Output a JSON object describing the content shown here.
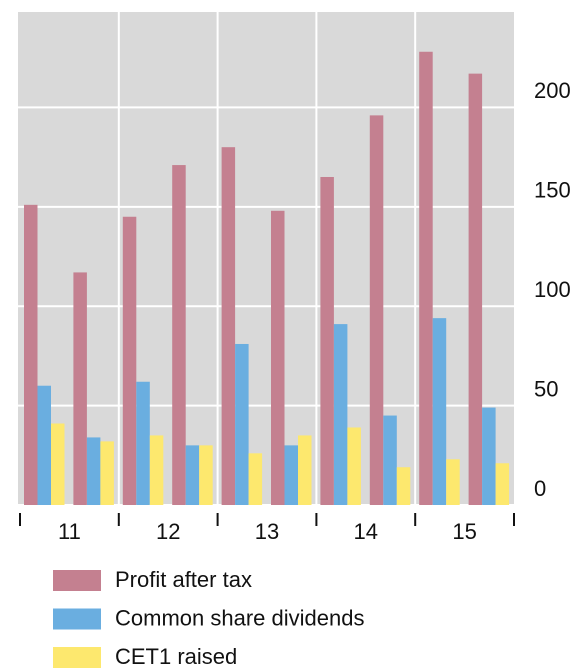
{
  "chart_data": {
    "type": "bar",
    "categories": [
      null,
      null,
      null,
      null,
      null,
      null,
      null,
      null,
      null,
      null
    ],
    "group_labels": [
      "11",
      "12",
      "13",
      "14",
      "15"
    ],
    "series": [
      {
        "name": "Profit after tax",
        "color": "#c48090",
        "values": [
          151,
          117,
          145,
          171,
          180,
          148,
          165,
          196,
          228,
          217
        ]
      },
      {
        "name": "Common share dividends",
        "color": "#6aaee0",
        "values": [
          60,
          34,
          62,
          30,
          81,
          30,
          91,
          45,
          94,
          49
        ]
      },
      {
        "name": "CET1 raised",
        "color": "#fde86e",
        "values": [
          41,
          32,
          35,
          30,
          26,
          35,
          39,
          19,
          23,
          21
        ]
      }
    ],
    "ylim": [
      0,
      248
    ],
    "yticks": [
      0,
      50,
      100,
      150,
      200
    ],
    "grid": true,
    "y_axis_side": "right"
  }
}
